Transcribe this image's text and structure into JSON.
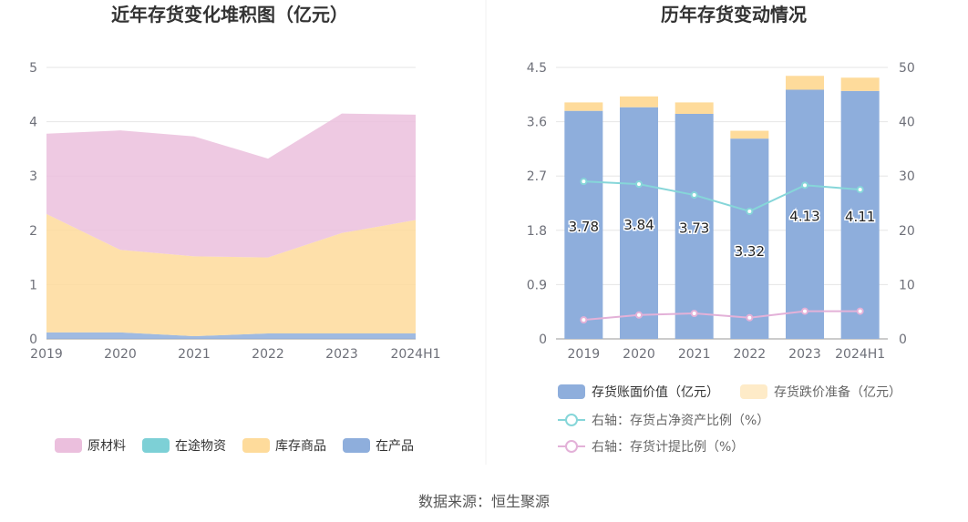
{
  "chart_data": [
    {
      "type": "area",
      "stacked": true,
      "title": "近年存货变化堆积图（亿元）",
      "categories": [
        "2019",
        "2020",
        "2021",
        "2022",
        "2023",
        "2024H1"
      ],
      "yticks": [
        "0",
        "1",
        "2",
        "3",
        "4",
        "5"
      ],
      "ylim": [
        0,
        5
      ],
      "series": [
        {
          "name": "在产品",
          "color": "#8eaedc",
          "values": [
            0.12,
            0.12,
            0.05,
            0.1,
            0.1,
            0.1
          ]
        },
        {
          "name": "库存商品",
          "color": "#fedb9b",
          "values": [
            2.18,
            1.52,
            1.47,
            1.4,
            1.85,
            2.09
          ]
        },
        {
          "name": "在途物资",
          "color": "#7dd0d6",
          "values": [
            0.0,
            0.0,
            0.0,
            0.0,
            0.0,
            0.0
          ]
        },
        {
          "name": "原材料",
          "color": "#ebbfdd",
          "values": [
            1.48,
            2.2,
            2.21,
            1.82,
            2.2,
            1.94
          ]
        }
      ],
      "legend": [
        "原材料",
        "在途物资",
        "库存商品",
        "在产品"
      ]
    },
    {
      "type": "bar",
      "stacked": true,
      "title": "历年存货变动情况",
      "categories": [
        "2019",
        "2020",
        "2021",
        "2022",
        "2023",
        "2024H1"
      ],
      "yticks_left": [
        "0",
        "0.9",
        "1.8",
        "2.7",
        "3.6",
        "4.5"
      ],
      "yticks_right": [
        "0",
        "10",
        "20",
        "30",
        "40",
        "50"
      ],
      "ylim_left": [
        0,
        4.5
      ],
      "ylim_right": [
        0,
        50
      ],
      "series": [
        {
          "name": "存货账面价值（亿元）",
          "axis": "left",
          "color": "#8eaedc",
          "values": [
            3.78,
            3.84,
            3.73,
            3.32,
            4.13,
            4.11
          ],
          "labels": [
            "3.78",
            "3.84",
            "3.73",
            "3.32",
            "4.13",
            "4.11"
          ]
        },
        {
          "name": "存货跌价准备（亿元）",
          "axis": "left",
          "color": "#fedb9b",
          "values": [
            0.14,
            0.18,
            0.19,
            0.13,
            0.23,
            0.22
          ]
        },
        {
          "name": "右轴：存货占净资产比例（%）",
          "axis": "right",
          "kind": "line",
          "color": "#86d6d9",
          "values": [
            29.0,
            28.5,
            26.5,
            23.5,
            28.3,
            27.5
          ]
        },
        {
          "name": "右轴：存货计提比例（%）",
          "axis": "right",
          "kind": "line",
          "color": "#e3b1d8",
          "values": [
            3.5,
            4.4,
            4.7,
            3.9,
            5.1,
            5.1
          ]
        }
      ]
    }
  ],
  "source_text": "数据来源：恒生聚源"
}
